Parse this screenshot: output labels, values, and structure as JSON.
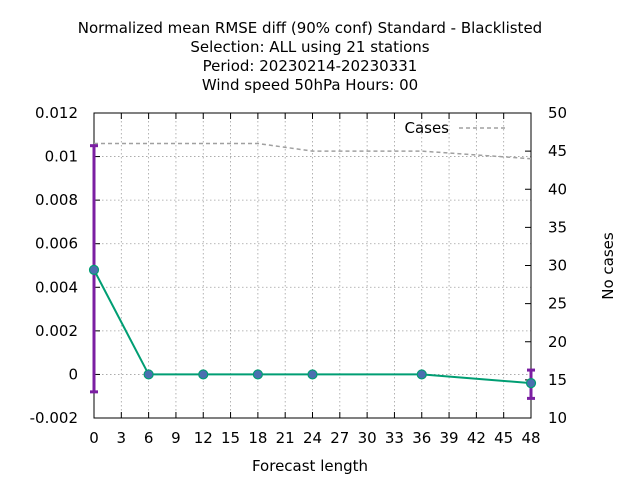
{
  "chart_data": {
    "type": "line",
    "title_lines": [
      "Normalized mean RMSE diff (90% conf) Standard - Blacklisted",
      "Selection: ALL using    21 stations",
      "Period: 20230214-20230331",
      "Wind speed 50hPa   Hours:  00"
    ],
    "xlabel": "Forecast length",
    "ylabel": "",
    "y2label": "No cases",
    "xlim": [
      0,
      48
    ],
    "ylim": [
      -0.002,
      0.012
    ],
    "y2lim": [
      10,
      50
    ],
    "x_ticks": [
      0,
      3,
      6,
      9,
      12,
      15,
      18,
      21,
      24,
      27,
      30,
      33,
      36,
      39,
      42,
      45,
      48
    ],
    "y_ticks": [
      -0.002,
      0,
      0.002,
      0.004,
      0.006,
      0.008,
      0.01,
      0.012
    ],
    "y_tick_labels": [
      "-0.002",
      "0",
      "0.002",
      "0.004",
      "0.006",
      "0.008",
      "0.01",
      "0.012"
    ],
    "y2_ticks": [
      10,
      15,
      20,
      25,
      30,
      35,
      40,
      45,
      50
    ],
    "grid": true,
    "legend_placement": "top-right",
    "series": [
      {
        "x": [
          0,
          6,
          12,
          18,
          24,
          36,
          48
        ],
        "values": [
          0.0048,
          0.0,
          0.0,
          0.0,
          0.0,
          0.0,
          -0.0004
        ],
        "color": "#009e73",
        "marker_color": "#4a6fb0"
      }
    ],
    "error_bars": [
      {
        "x": 0,
        "low": -0.0008,
        "high": 0.0105
      },
      {
        "x": 48,
        "low": -0.0011,
        "high": 0.0002
      }
    ],
    "error_bar_color": "#7b1fa2",
    "cases": {
      "name": "Cases",
      "axis": "right",
      "x": [
        0,
        6,
        12,
        18,
        24,
        36,
        48
      ],
      "values": [
        46,
        46,
        46,
        46,
        45,
        45,
        44
      ],
      "color": "#a0a0a0"
    }
  }
}
